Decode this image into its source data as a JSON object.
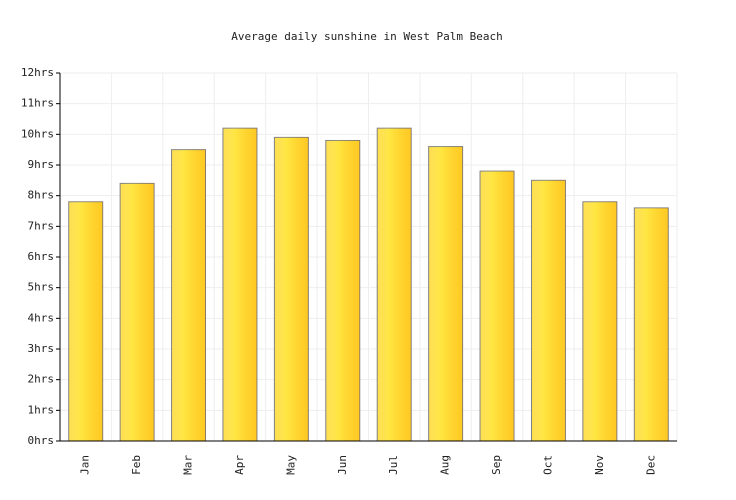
{
  "chart_data": {
    "type": "bar",
    "title": "Average daily sunshine in West Palm Beach",
    "categories": [
      "Jan",
      "Feb",
      "Mar",
      "Apr",
      "May",
      "Jun",
      "Jul",
      "Aug",
      "Sep",
      "Oct",
      "Nov",
      "Dec"
    ],
    "values": [
      7.8,
      8.4,
      9.5,
      10.2,
      9.9,
      9.8,
      10.2,
      9.6,
      8.8,
      8.5,
      7.8,
      7.6
    ],
    "color": "#ffd92f",
    "ylim": [
      0,
      12
    ],
    "yticks": [
      {
        "value": 0,
        "label": "0hrs"
      },
      {
        "value": 1,
        "label": "1hrs"
      },
      {
        "value": 2,
        "label": "2hrs"
      },
      {
        "value": 3,
        "label": "3hrs"
      },
      {
        "value": 4,
        "label": "4hrs"
      },
      {
        "value": 5,
        "label": "5hrs"
      },
      {
        "value": 6,
        "label": "6hrs"
      },
      {
        "value": 7,
        "label": "7hrs"
      },
      {
        "value": 8,
        "label": "8hrs"
      },
      {
        "value": 9,
        "label": "9hrs"
      },
      {
        "value": 10,
        "label": "10hrs"
      },
      {
        "value": 11,
        "label": "11hrs"
      },
      {
        "value": 12,
        "label": "12hrs"
      }
    ],
    "grid": true
  }
}
